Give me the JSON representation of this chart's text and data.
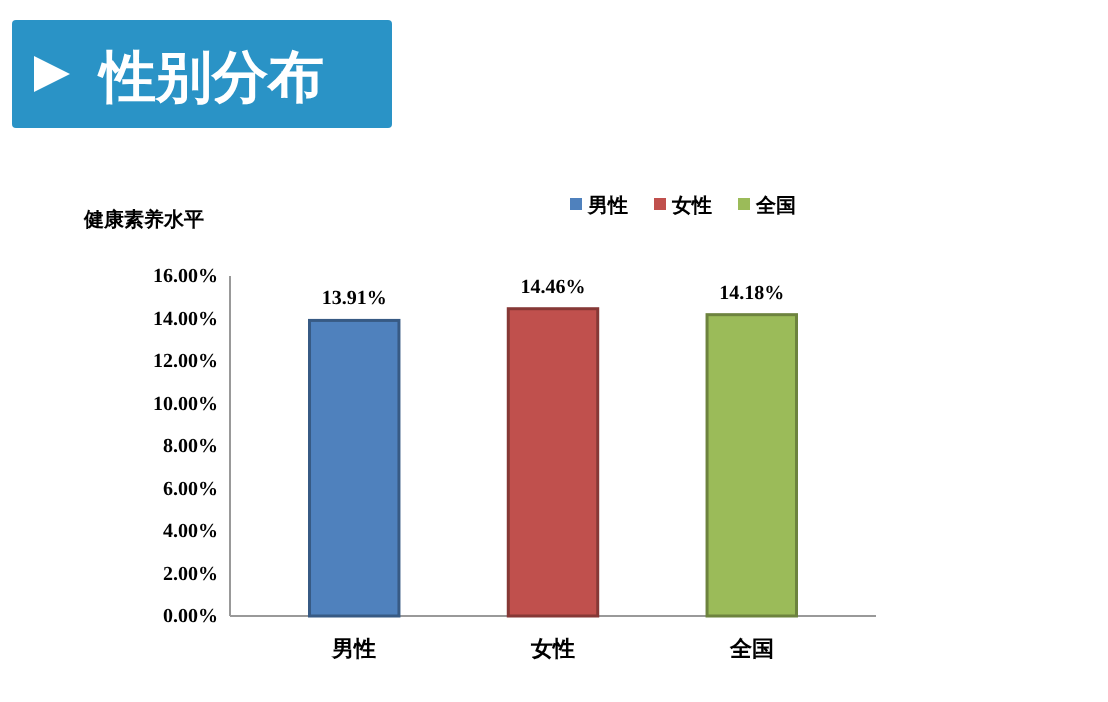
{
  "chart_data": {
    "type": "bar",
    "title": "性别分布",
    "ylabel": "健康素养水平",
    "categories": [
      "男性",
      "女性",
      "全国"
    ],
    "series": [
      {
        "name": "男性",
        "color": "#4f81bd",
        "values": [
          13.91,
          null,
          null
        ],
        "value_labels": [
          "13.91%",
          null,
          null
        ]
      },
      {
        "name": "女性",
        "color": "#c0504d",
        "values": [
          null,
          14.46,
          null
        ],
        "value_labels": [
          null,
          "14.46%",
          null
        ]
      },
      {
        "name": "全国",
        "color": "#9bbb59",
        "values": [
          null,
          null,
          14.18
        ],
        "value_labels": [
          null,
          null,
          "14.18%"
        ]
      }
    ],
    "ylim": [
      0,
      16
    ],
    "yticks": [
      {
        "value": 0,
        "label": "0.00%"
      },
      {
        "value": 2,
        "label": "2.00%"
      },
      {
        "value": 4,
        "label": "4.00%"
      },
      {
        "value": 6,
        "label": "6.00%"
      },
      {
        "value": 8,
        "label": "8.00%"
      },
      {
        "value": 10,
        "label": "10.00%"
      },
      {
        "value": 12,
        "label": "12.00%"
      },
      {
        "value": 14,
        "label": "14.00%"
      },
      {
        "value": 16,
        "label": "16.00%"
      }
    ],
    "legend": "top"
  }
}
